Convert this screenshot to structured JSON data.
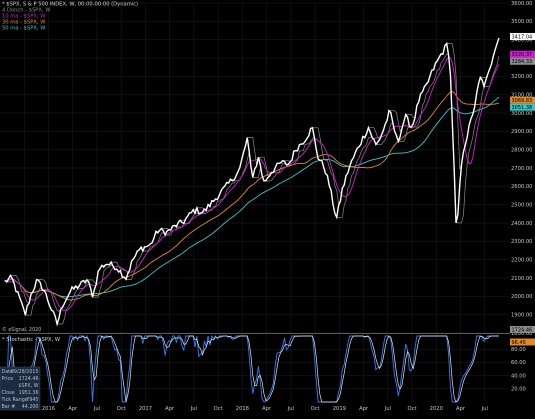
{
  "colors": {
    "background": "#000000",
    "grid": "#1e1e1e",
    "price": "#ffffff",
    "donch": "#8c8c8c",
    "ma10": "#d21ed2",
    "ma30": "#e08a2a",
    "ma50": "#35c8c8",
    "stoch_k": "#2f7ff5",
    "stoch_d": "#e6e6e6",
    "tag_price": "#ffffff",
    "tag_ma10": "#d21ed2",
    "tag_donch": "#8c8c8c",
    "tag_ma30": "#e08a2a",
    "tag_ma50": "#35c8c8",
    "tag_stoch": "#e08a2a"
  },
  "legend": {
    "title": "* $SPX, S & P 500 INDEX, W, 00:00-00:00 (Dynamic)",
    "items": [
      "4 Donch - $SPX, W",
      "10 ma - $SPX, W",
      "30 ma - $SPX, W",
      "50 ma - $SPX, W"
    ]
  },
  "stoch_legend": "* Stochastic - $SPX, W",
  "watermark": "© eSignal, 2020",
  "info_box": {
    "rows": [
      {
        "label": "Date",
        "value": "09/28/2015"
      },
      {
        "label": "Price",
        "value": "1724.46"
      },
      {
        "label": "",
        "value": "$SPX, W"
      },
      {
        "label": "Close",
        "value": "1951.36"
      },
      {
        "label": "Tick Range",
        "value": "7945"
      },
      {
        "label": "Bar #",
        "value": "44.200"
      }
    ]
  },
  "price_tags": [
    {
      "value": "3417.04",
      "color_key": "tag_price"
    },
    {
      "value": "3320.37",
      "color_key": "tag_ma10"
    },
    {
      "value": "3284.33",
      "color_key": "tag_donch"
    },
    {
      "value": "3069.83",
      "color_key": "tag_ma30"
    },
    {
      "value": "3051.38",
      "color_key": "tag_ma50"
    }
  ],
  "stoch_tags": [
    {
      "value": "1724.46",
      "color_key": "tag_donch"
    },
    {
      "value": "96.45",
      "color_key": "tag_stoch"
    }
  ],
  "chart_data": {
    "type": "line",
    "x_labels": [
      {
        "label": "Oct",
        "t": 2015.75
      },
      {
        "label": "2016",
        "t": 2016.0
      },
      {
        "label": "Apr",
        "t": 2016.25
      },
      {
        "label": "Jul",
        "t": 2016.5
      },
      {
        "label": "Oct",
        "t": 2016.75
      },
      {
        "label": "2017",
        "t": 2017.0
      },
      {
        "label": "Apr",
        "t": 2017.25
      },
      {
        "label": "Jul",
        "t": 2017.5
      },
      {
        "label": "Oct",
        "t": 2017.75
      },
      {
        "label": "2018",
        "t": 2018.0
      },
      {
        "label": "Apr",
        "t": 2018.25
      },
      {
        "label": "Jul",
        "t": 2018.5
      },
      {
        "label": "Oct",
        "t": 2018.75
      },
      {
        "label": "2019",
        "t": 2019.0
      },
      {
        "label": "Apr",
        "t": 2019.25
      },
      {
        "label": "Jul",
        "t": 2019.5
      },
      {
        "label": "Oct",
        "t": 2019.75
      },
      {
        "label": "2020",
        "t": 2020.0
      },
      {
        "label": "Apr",
        "t": 2020.25
      },
      {
        "label": "Jul",
        "t": 2020.5
      }
    ],
    "x_range": [
      2015.5,
      2020.75
    ],
    "y_range": [
      1800,
      3600
    ],
    "y_ticks": [
      1800,
      1900,
      2000,
      2100,
      2200,
      2300,
      2400,
      2500,
      2600,
      2700,
      2800,
      2900,
      3000,
      3100,
      3200,
      3300,
      3400,
      3500,
      3600
    ],
    "y_tick_labels": [
      "1800.00",
      "1900.00",
      "2000.00",
      "2100.00",
      "2200.00",
      "2300.00",
      "2400.00",
      "2500.00",
      "2600.00",
      "2700.00",
      "2800.00",
      "2900.00",
      "3000.00",
      "3100.00",
      "3200.00",
      "3300.00",
      "3400.00",
      "3500.00",
      "3600.00"
    ],
    "price_keypoints": [
      [
        2015.55,
        2080
      ],
      [
        2015.62,
        2100
      ],
      [
        2015.7,
        1990
      ],
      [
        2015.76,
        1900
      ],
      [
        2015.82,
        2010
      ],
      [
        2015.88,
        2085
      ],
      [
        2015.95,
        2040
      ],
      [
        2016.03,
        1930
      ],
      [
        2016.09,
        1850
      ],
      [
        2016.15,
        1960
      ],
      [
        2016.23,
        2030
      ],
      [
        2016.32,
        2060
      ],
      [
        2016.4,
        2090
      ],
      [
        2016.46,
        2000
      ],
      [
        2016.52,
        2150
      ],
      [
        2016.6,
        2180
      ],
      [
        2016.7,
        2160
      ],
      [
        2016.8,
        2100
      ],
      [
        2016.87,
        2200
      ],
      [
        2016.95,
        2260
      ],
      [
        2017.05,
        2280
      ],
      [
        2017.13,
        2360
      ],
      [
        2017.22,
        2350
      ],
      [
        2017.3,
        2380
      ],
      [
        2017.4,
        2410
      ],
      [
        2017.5,
        2470
      ],
      [
        2017.6,
        2460
      ],
      [
        2017.7,
        2520
      ],
      [
        2017.8,
        2580
      ],
      [
        2017.9,
        2640
      ],
      [
        2017.97,
        2690
      ],
      [
        2018.05,
        2860
      ],
      [
        2018.1,
        2650
      ],
      [
        2018.17,
        2760
      ],
      [
        2018.22,
        2620
      ],
      [
        2018.3,
        2680
      ],
      [
        2018.4,
        2730
      ],
      [
        2018.48,
        2720
      ],
      [
        2018.55,
        2800
      ],
      [
        2018.65,
        2860
      ],
      [
        2018.72,
        2920
      ],
      [
        2018.78,
        2760
      ],
      [
        2018.85,
        2700
      ],
      [
        2018.9,
        2600
      ],
      [
        2018.97,
        2420
      ],
      [
        2019.03,
        2580
      ],
      [
        2019.1,
        2700
      ],
      [
        2019.2,
        2820
      ],
      [
        2019.3,
        2920
      ],
      [
        2019.38,
        2820
      ],
      [
        2019.45,
        2900
      ],
      [
        2019.52,
        3010
      ],
      [
        2019.6,
        2840
      ],
      [
        2019.68,
        2980
      ],
      [
        2019.75,
        2920
      ],
      [
        2019.82,
        3070
      ],
      [
        2019.9,
        3150
      ],
      [
        2019.97,
        3240
      ],
      [
        2020.05,
        3320
      ],
      [
        2020.12,
        3380
      ],
      [
        2020.15,
        3170
      ],
      [
        2020.18,
        2750
      ],
      [
        2020.21,
        2300
      ],
      [
        2020.24,
        2600
      ],
      [
        2020.28,
        2800
      ],
      [
        2020.33,
        2900
      ],
      [
        2020.4,
        3050
      ],
      [
        2020.45,
        3190
      ],
      [
        2020.5,
        3150
      ],
      [
        2020.55,
        3230
      ],
      [
        2020.6,
        3350
      ],
      [
        2020.65,
        3420
      ]
    ],
    "stoch_range": [
      0,
      100
    ],
    "stoch_ticks": [
      20,
      40,
      60,
      80
    ],
    "stoch_tick_labels": [
      "20.00",
      "40.00",
      "60.00",
      "80.00"
    ]
  }
}
